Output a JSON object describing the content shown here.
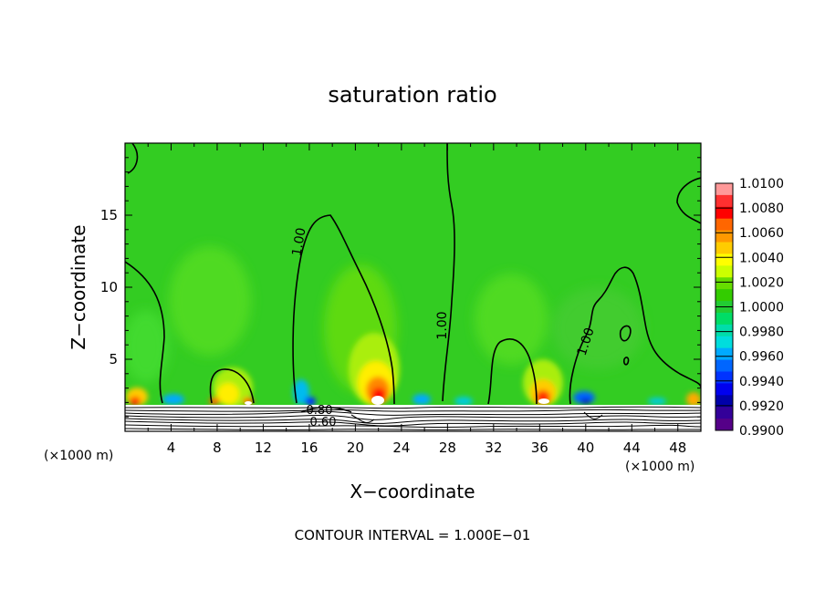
{
  "chart_data": {
    "type": "contour",
    "title": "saturation ratio",
    "xlabel": "X−coordinate",
    "ylabel": "Z−coordinate",
    "x_unit": "(×1000 m)",
    "z_unit": "(×1000 m)",
    "xlim": [
      0,
      50
    ],
    "zlim": [
      0,
      20
    ],
    "x_ticks": [
      "4",
      "8",
      "12",
      "16",
      "20",
      "24",
      "28",
      "32",
      "36",
      "40",
      "44",
      "48"
    ],
    "z_ticks": [
      "5",
      "10",
      "15"
    ],
    "footer": "CONTOUR INTERVAL = 1.000E−01",
    "colorbar": {
      "labels": [
        "1.0100",
        "1.0080",
        "1.0060",
        "1.0040",
        "1.0020",
        "1.0000",
        "0.9980",
        "0.9960",
        "0.9940",
        "0.9920",
        "0.9900"
      ],
      "colors": [
        "#ff9999",
        "#ff3030",
        "#ff0000",
        "#ff6600",
        "#ff9900",
        "#ffcc00",
        "#ffff00",
        "#ccff00",
        "#66dd00",
        "#33cc00",
        "#22cc33",
        "#00dd66",
        "#00ddaa",
        "#00dddd",
        "#00aaff",
        "#0066ff",
        "#0033ff",
        "#0000ee",
        "#0000aa",
        "#330099",
        "#550088"
      ]
    },
    "contour_labels": [
      "1.00",
      "1.00",
      "1.00",
      "0.80",
      "0.60"
    ],
    "grid": false,
    "legend": "right"
  }
}
